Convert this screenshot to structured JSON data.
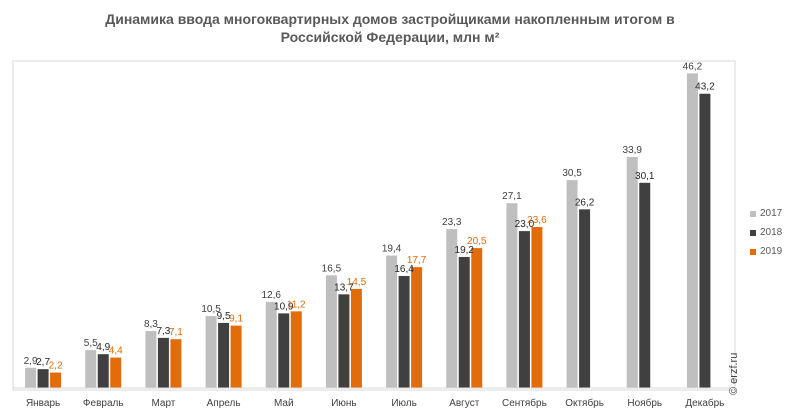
{
  "chart_data": {
    "type": "bar",
    "title_line1": "Динамика ввода многоквартирных домов застройщиками накопленным итогом в",
    "title_line2": "Российской  Федерации, млн м²",
    "categories": [
      "Январь",
      "Февраль",
      "Март",
      "Апрель",
      "Май",
      "Июнь",
      "Июль",
      "Август",
      "Сентябрь",
      "Октябрь",
      "Ноябрь",
      "Декабрь"
    ],
    "series": [
      {
        "name": "2017",
        "color": "#bfbfbf",
        "label_color": "#404040",
        "values": [
          2.9,
          5.5,
          8.3,
          10.5,
          12.6,
          16.5,
          19.4,
          23.3,
          27.1,
          30.5,
          33.9,
          46.2
        ],
        "labels": [
          "2,9",
          "5,5",
          "8,3",
          "10,5",
          "12,6",
          "16,5",
          "19,4",
          "23,3",
          "27,1",
          "30,5",
          "33,9",
          "46,2"
        ]
      },
      {
        "name": "2018",
        "color": "#404040",
        "label_color": "#262626",
        "values": [
          2.7,
          4.9,
          7.3,
          9.5,
          10.9,
          13.7,
          16.4,
          19.2,
          23.0,
          26.2,
          30.1,
          43.2
        ],
        "labels": [
          "2,7",
          "4,9",
          "7,3",
          "9,5",
          "10,9",
          "13,7",
          "16,4",
          "19,2",
          "23,0",
          "26,2",
          "30,1",
          "43,2"
        ]
      },
      {
        "name": "2019",
        "color": "#e36c0a",
        "label_color": "#e36c0a",
        "values": [
          2.2,
          4.4,
          7.1,
          9.1,
          11.2,
          14.5,
          17.7,
          20.5,
          23.6,
          null,
          null,
          null
        ],
        "labels": [
          "2,2",
          "4,4",
          "7,1",
          "9,1",
          "11,2",
          "14,5",
          "17,7",
          "20,5",
          "23,6",
          "",
          "",
          ""
        ]
      }
    ],
    "ylim": [
      0,
      50
    ],
    "grid": false,
    "legend_position": "right"
  },
  "copyright": "© erzf.ru"
}
